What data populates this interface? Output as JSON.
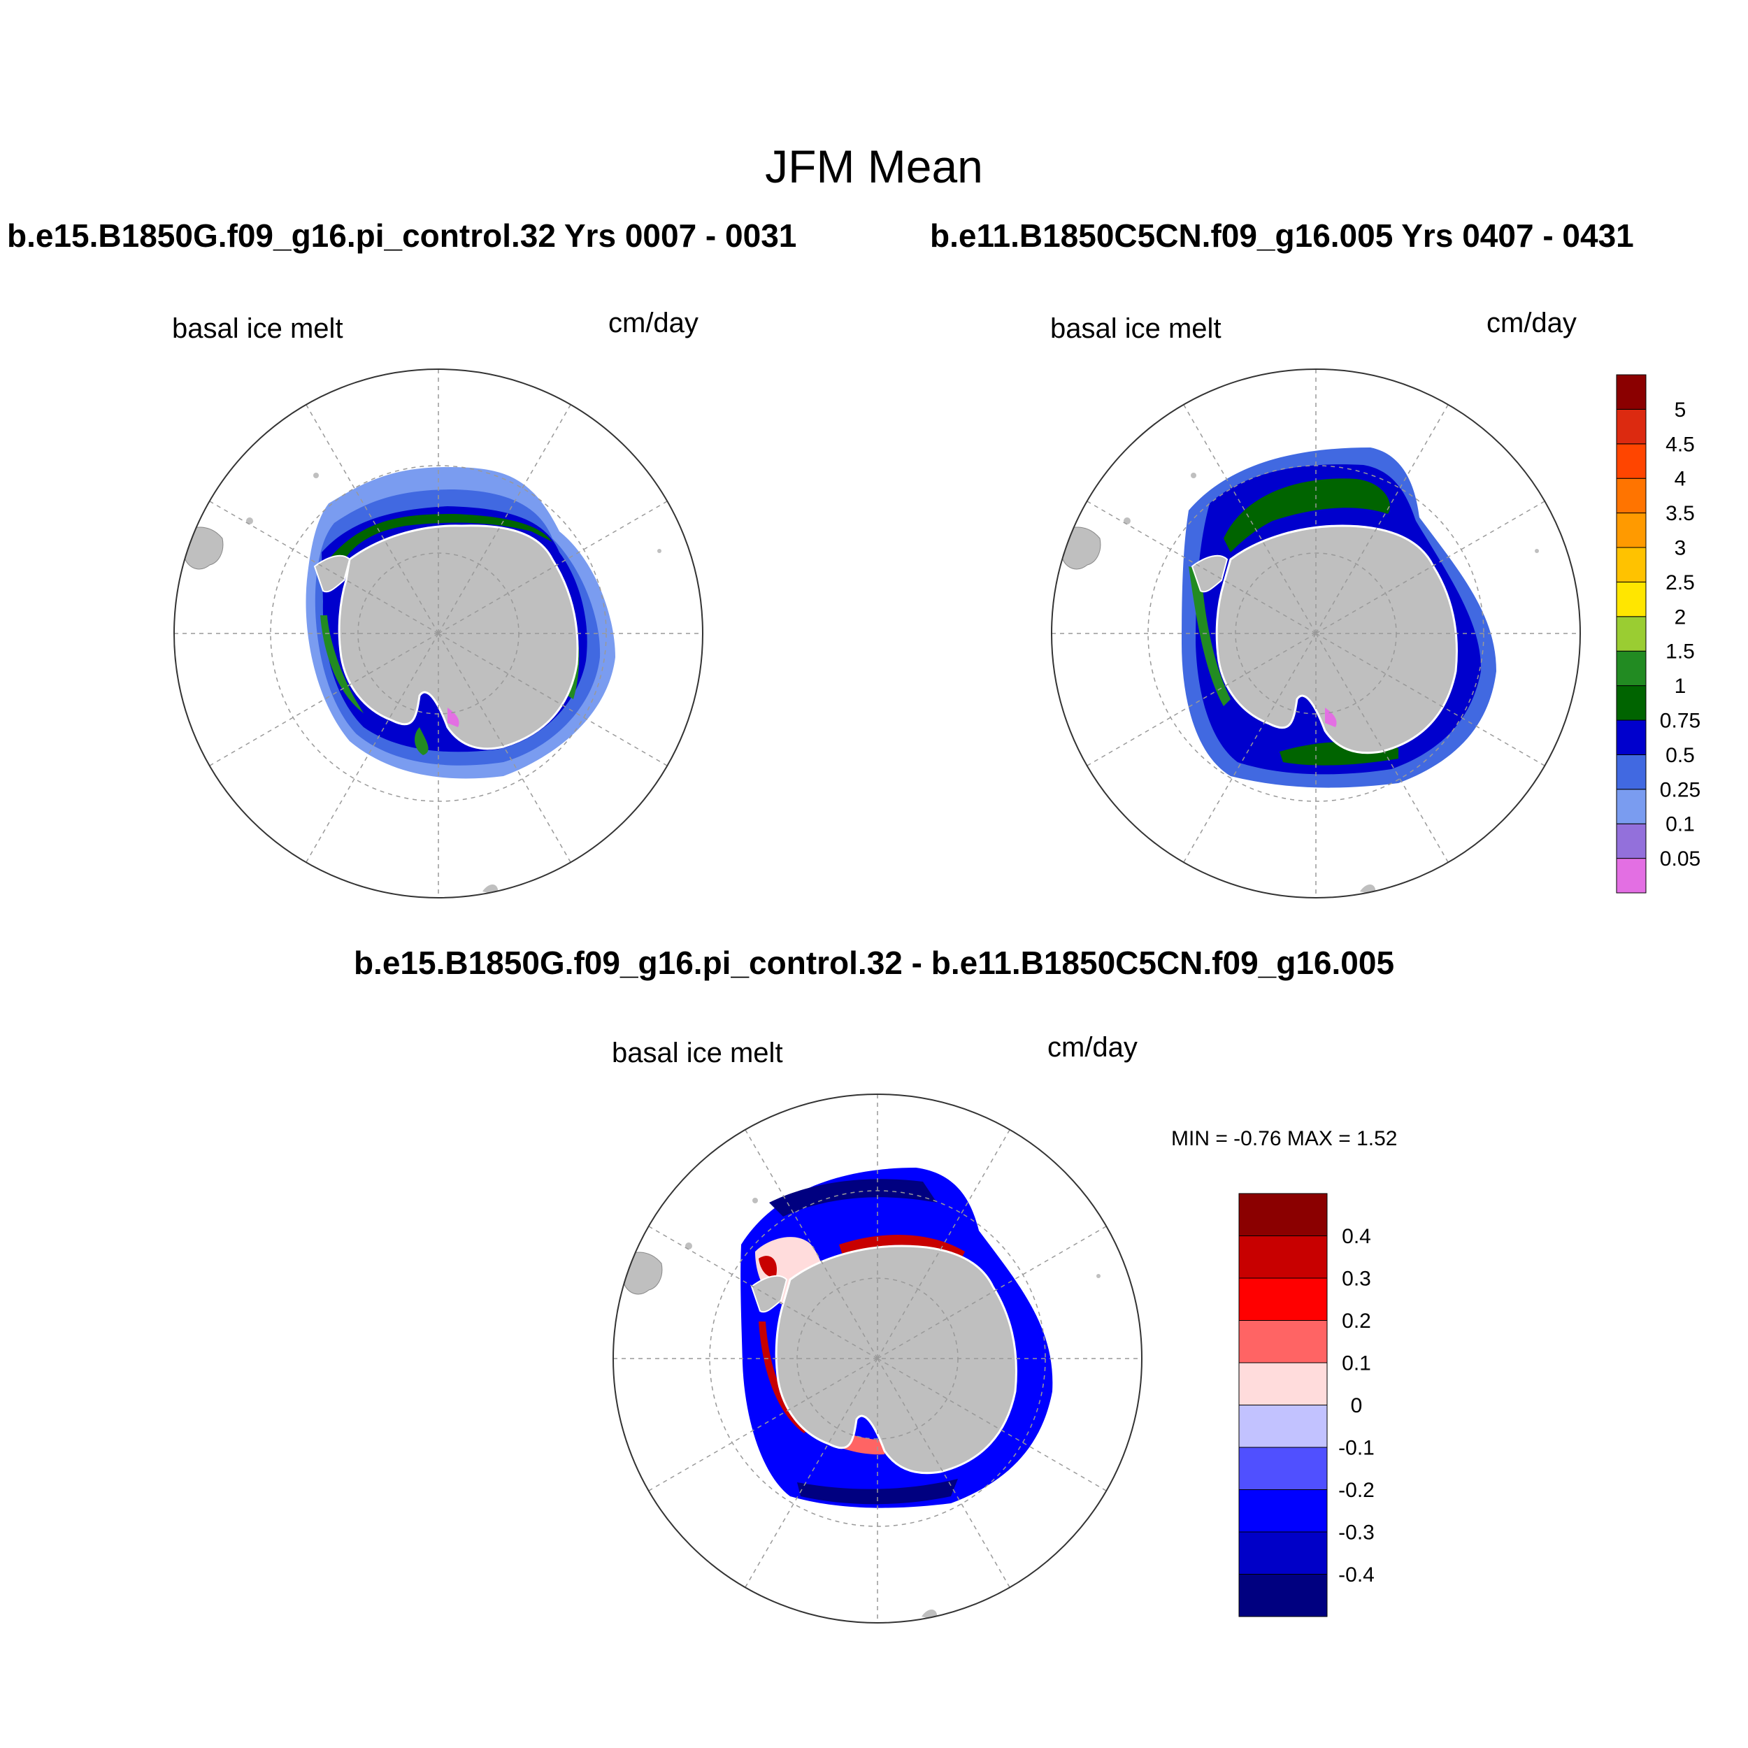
{
  "figure_title": "JFM Mean",
  "panels": [
    {
      "case_title": "b.e15.B1850G.f09_g16.pi_control.32  Yrs 0007 - 0031",
      "variable": "basal ice melt",
      "units": "cm/day"
    },
    {
      "case_title": "b.e11.B1850C5CN.f09_g16.005  Yrs 0407 - 0431",
      "variable": "basal ice melt",
      "units": "cm/day"
    },
    {
      "case_title": "b.e15.B1850G.f09_g16.pi_control.32 - b.e11.B1850C5CN.f09_g16.005",
      "variable": "basal ice melt",
      "units": "cm/day",
      "min_max": "MIN =  -0.76 MAX =   1.52"
    }
  ],
  "chart_data": [
    {
      "type": "heatmap",
      "projection": "south-polar-stereographic",
      "title": "basal ice melt",
      "units": "cm/day",
      "colorbar": {
        "levels": [
          "0.05",
          "0.1",
          "0.25",
          "0.5",
          "0.75",
          "1",
          "1.5",
          "2",
          "2.5",
          "3",
          "3.5",
          "4",
          "4.5",
          "5"
        ],
        "colors": [
          "#e36fe3",
          "#9370db",
          "#7a9cf0",
          "#4169e1",
          "#0000cd",
          "#006400",
          "#228b22",
          "#9acd32",
          "#ffe600",
          "#ffc200",
          "#ff9a00",
          "#ff7400",
          "#ff4500",
          "#dc2a10",
          "#8b0000"
        ],
        "position": "right"
      }
    },
    {
      "type": "heatmap",
      "projection": "south-polar-stereographic",
      "title": "basal ice melt",
      "units": "cm/day",
      "colorbar": "shared"
    },
    {
      "type": "heatmap",
      "projection": "south-polar-stereographic",
      "title": "basal ice melt",
      "units": "cm/day",
      "min": -0.76,
      "max": 1.52,
      "colorbar": {
        "levels": [
          "-0.4",
          "-0.3",
          "-0.2",
          "-0.1",
          "0",
          "0.1",
          "0.2",
          "0.3",
          "0.4"
        ],
        "colors": [
          "#000080",
          "#0000c8",
          "#0000ff",
          "#5050ff",
          "#c2c2ff",
          "#ffdcdc",
          "#ff6464",
          "#ff0000",
          "#c80000",
          "#8b0000"
        ],
        "position": "right"
      }
    }
  ]
}
